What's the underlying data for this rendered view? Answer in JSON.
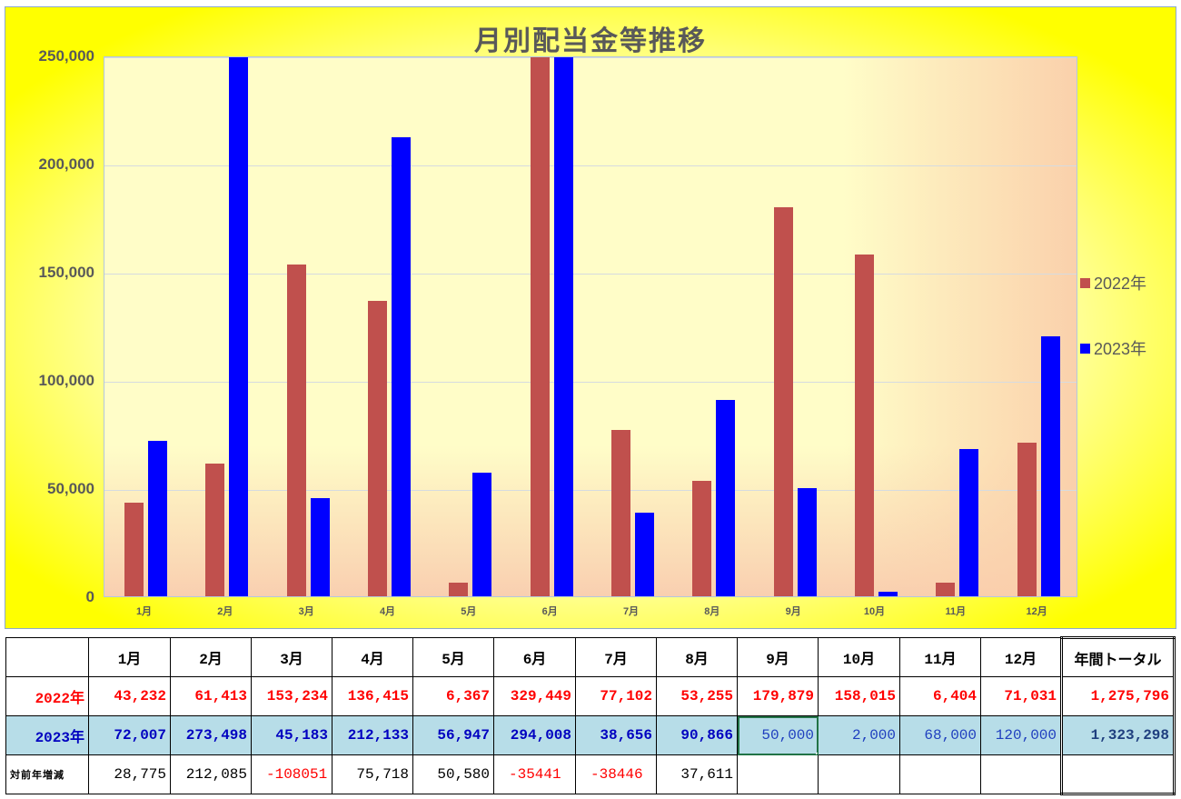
{
  "chart_data": {
    "type": "bar",
    "title": "月別配当金等推移",
    "categories": [
      "1月",
      "2月",
      "3月",
      "4月",
      "5月",
      "6月",
      "7月",
      "8月",
      "9月",
      "10月",
      "11月",
      "12月"
    ],
    "series": [
      {
        "name": "2022年",
        "color": "#c0504d",
        "values": [
          43232,
          61413,
          153234,
          136415,
          6367,
          329449,
          77102,
          53255,
          179879,
          158015,
          6404,
          71031
        ]
      },
      {
        "name": "2023年",
        "color": "#0000ff",
        "values": [
          72007,
          273498,
          45183,
          212133,
          56947,
          294008,
          38656,
          90866,
          50000,
          2000,
          68000,
          120000
        ]
      }
    ],
    "xlabel": "",
    "ylabel": "",
    "ylim": [
      0,
      250000
    ],
    "yticks": [
      "0",
      "50,000",
      "100,000",
      "150,000",
      "200,000",
      "250,000"
    ],
    "grid": true,
    "legend_position": "right",
    "note": "values above 250,000 are clipped at the axis maximum"
  },
  "legend": [
    {
      "label": "2022年",
      "color": "#c0504d"
    },
    {
      "label": "2023年",
      "color": "#0000ff"
    }
  ],
  "table": {
    "header": [
      "",
      "1月",
      "2月",
      "3月",
      "4月",
      "5月",
      "6月",
      "7月",
      "8月",
      "9月",
      "10月",
      "11月",
      "12月",
      "年間トータル"
    ],
    "row_2022": {
      "label": "2022年",
      "cells": [
        "43,232",
        "61,413",
        "153,234",
        "136,415",
        "6,367",
        "329,449",
        "77,102",
        "53,255",
        "179,879",
        "158,015",
        "6,404",
        "71,031"
      ],
      "total": "1,275,796"
    },
    "row_2023": {
      "label": "2023年",
      "cells": [
        "72,007",
        "273,498",
        "45,183",
        "212,133",
        "56,947",
        "294,008",
        "38,656",
        "90,866",
        "50,000",
        "2,000",
        "68,000",
        "120,000"
      ],
      "total": "1,323,298"
    },
    "row_diff": {
      "label": "対前年増減",
      "cells": [
        "28,775",
        "212,085",
        "-108051",
        "75,718",
        "50,580",
        "-35441",
        "-38446",
        "37,611",
        "",
        "",
        "",
        ""
      ],
      "total": ""
    },
    "selected_cell": "9月 2023年"
  }
}
